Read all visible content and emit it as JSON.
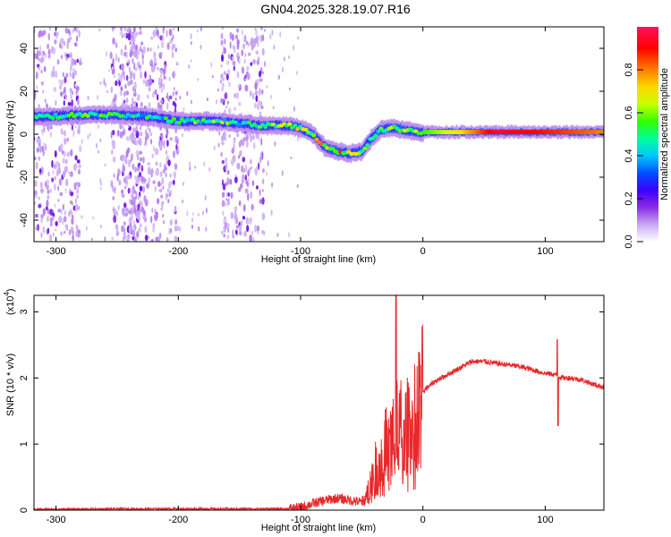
{
  "title": "GN04.2025.328.19.07.R16",
  "chart_data": [
    {
      "type": "heatmap",
      "title": "GN04.2025.328.19.07.R16",
      "xlabel": "Height of straight line (km)",
      "ylabel": "Frequency (Hz)",
      "xlim": [
        -318,
        148
      ],
      "ylim": [
        -50,
        50
      ],
      "xticks": [
        -300,
        -200,
        -100,
        0,
        100
      ],
      "yticks": [
        -40,
        -20,
        0,
        20,
        40
      ],
      "colorbar": {
        "label": "Normalized spectral amplitude",
        "range": [
          0,
          1
        ],
        "ticks": [
          "0.0",
          "0.2",
          "0.4",
          "0.6",
          "0.8"
        ],
        "colors": [
          "#ffffff",
          "#c9a8f2",
          "#8a2be2",
          "#3b00ff",
          "#0050ff",
          "#00c8ff",
          "#00ff9a",
          "#32ff00",
          "#c8ff00",
          "#ffd700",
          "#ff7f00",
          "#ff0000",
          "#ff1060"
        ]
      },
      "ridge": {
        "x": [
          -318,
          -280,
          -250,
          -220,
          -200,
          -170,
          -150,
          -130,
          -110,
          -100,
          -90,
          -80,
          -70,
          -60,
          -50,
          -42,
          -35,
          -25,
          -15,
          -5,
          0,
          30,
          60,
          90,
          120,
          148
        ],
        "frequency": [
          8,
          9,
          9,
          8,
          6,
          6,
          5,
          4,
          4,
          3,
          0,
          -6,
          -8,
          -9,
          -8,
          -2,
          2,
          3,
          2,
          1,
          1,
          1,
          1,
          1,
          1,
          1
        ],
        "amplitude": [
          0.45,
          0.5,
          0.5,
          0.45,
          0.5,
          0.55,
          0.5,
          0.55,
          0.6,
          0.65,
          0.65,
          0.7,
          0.75,
          0.7,
          0.6,
          0.5,
          0.6,
          0.65,
          0.7,
          0.6,
          0.55,
          0.7,
          0.95,
          0.9,
          0.85,
          0.8
        ]
      },
      "noise_bands": [
        [
          -318,
          -280
        ],
        [
          -255,
          -230
        ],
        [
          -245,
          -200
        ],
        [
          -165,
          -130
        ]
      ]
    },
    {
      "type": "line",
      "xlabel": "Height of straight line (km)",
      "ylabel": "SNR (10 * v/v)",
      "yscale_label": "(x10",
      "yscale_exp": "4",
      "xlim": [
        -318,
        148
      ],
      "ylim": [
        0,
        3.25
      ],
      "xticks": [
        -300,
        -200,
        -100,
        0,
        100
      ],
      "yticks": [
        0,
        1,
        2,
        3
      ],
      "color": "#e8282b",
      "series": [
        {
          "name": "SNR",
          "x": [
            -318,
            -250,
            -200,
            -150,
            -110,
            -100,
            -90,
            -80,
            -70,
            -60,
            -50,
            -45,
            -40,
            -35,
            -30,
            -25,
            -20,
            -15,
            -10,
            -5,
            0,
            10,
            20,
            30,
            40,
            50,
            60,
            70,
            80,
            90,
            100,
            108,
            112,
            115,
            120,
            130,
            140,
            148
          ],
          "y": [
            0.01,
            0.02,
            0.02,
            0.02,
            0.02,
            0.04,
            0.1,
            0.15,
            0.18,
            0.15,
            0.12,
            0.3,
            0.6,
            0.8,
            1.0,
            1.1,
            1.3,
            1.2,
            1.35,
            1.55,
            1.8,
            1.95,
            2.05,
            2.15,
            2.25,
            2.25,
            2.22,
            2.2,
            2.17,
            2.12,
            2.07,
            2.05,
            2.02,
            2.0,
            2.0,
            1.97,
            1.9,
            1.86
          ]
        }
      ],
      "spikes": [
        {
          "x": -22,
          "y": 3.25
        },
        {
          "x": 110,
          "y": 2.58
        },
        {
          "x": 110.5,
          "y": 1.28
        }
      ]
    }
  ]
}
